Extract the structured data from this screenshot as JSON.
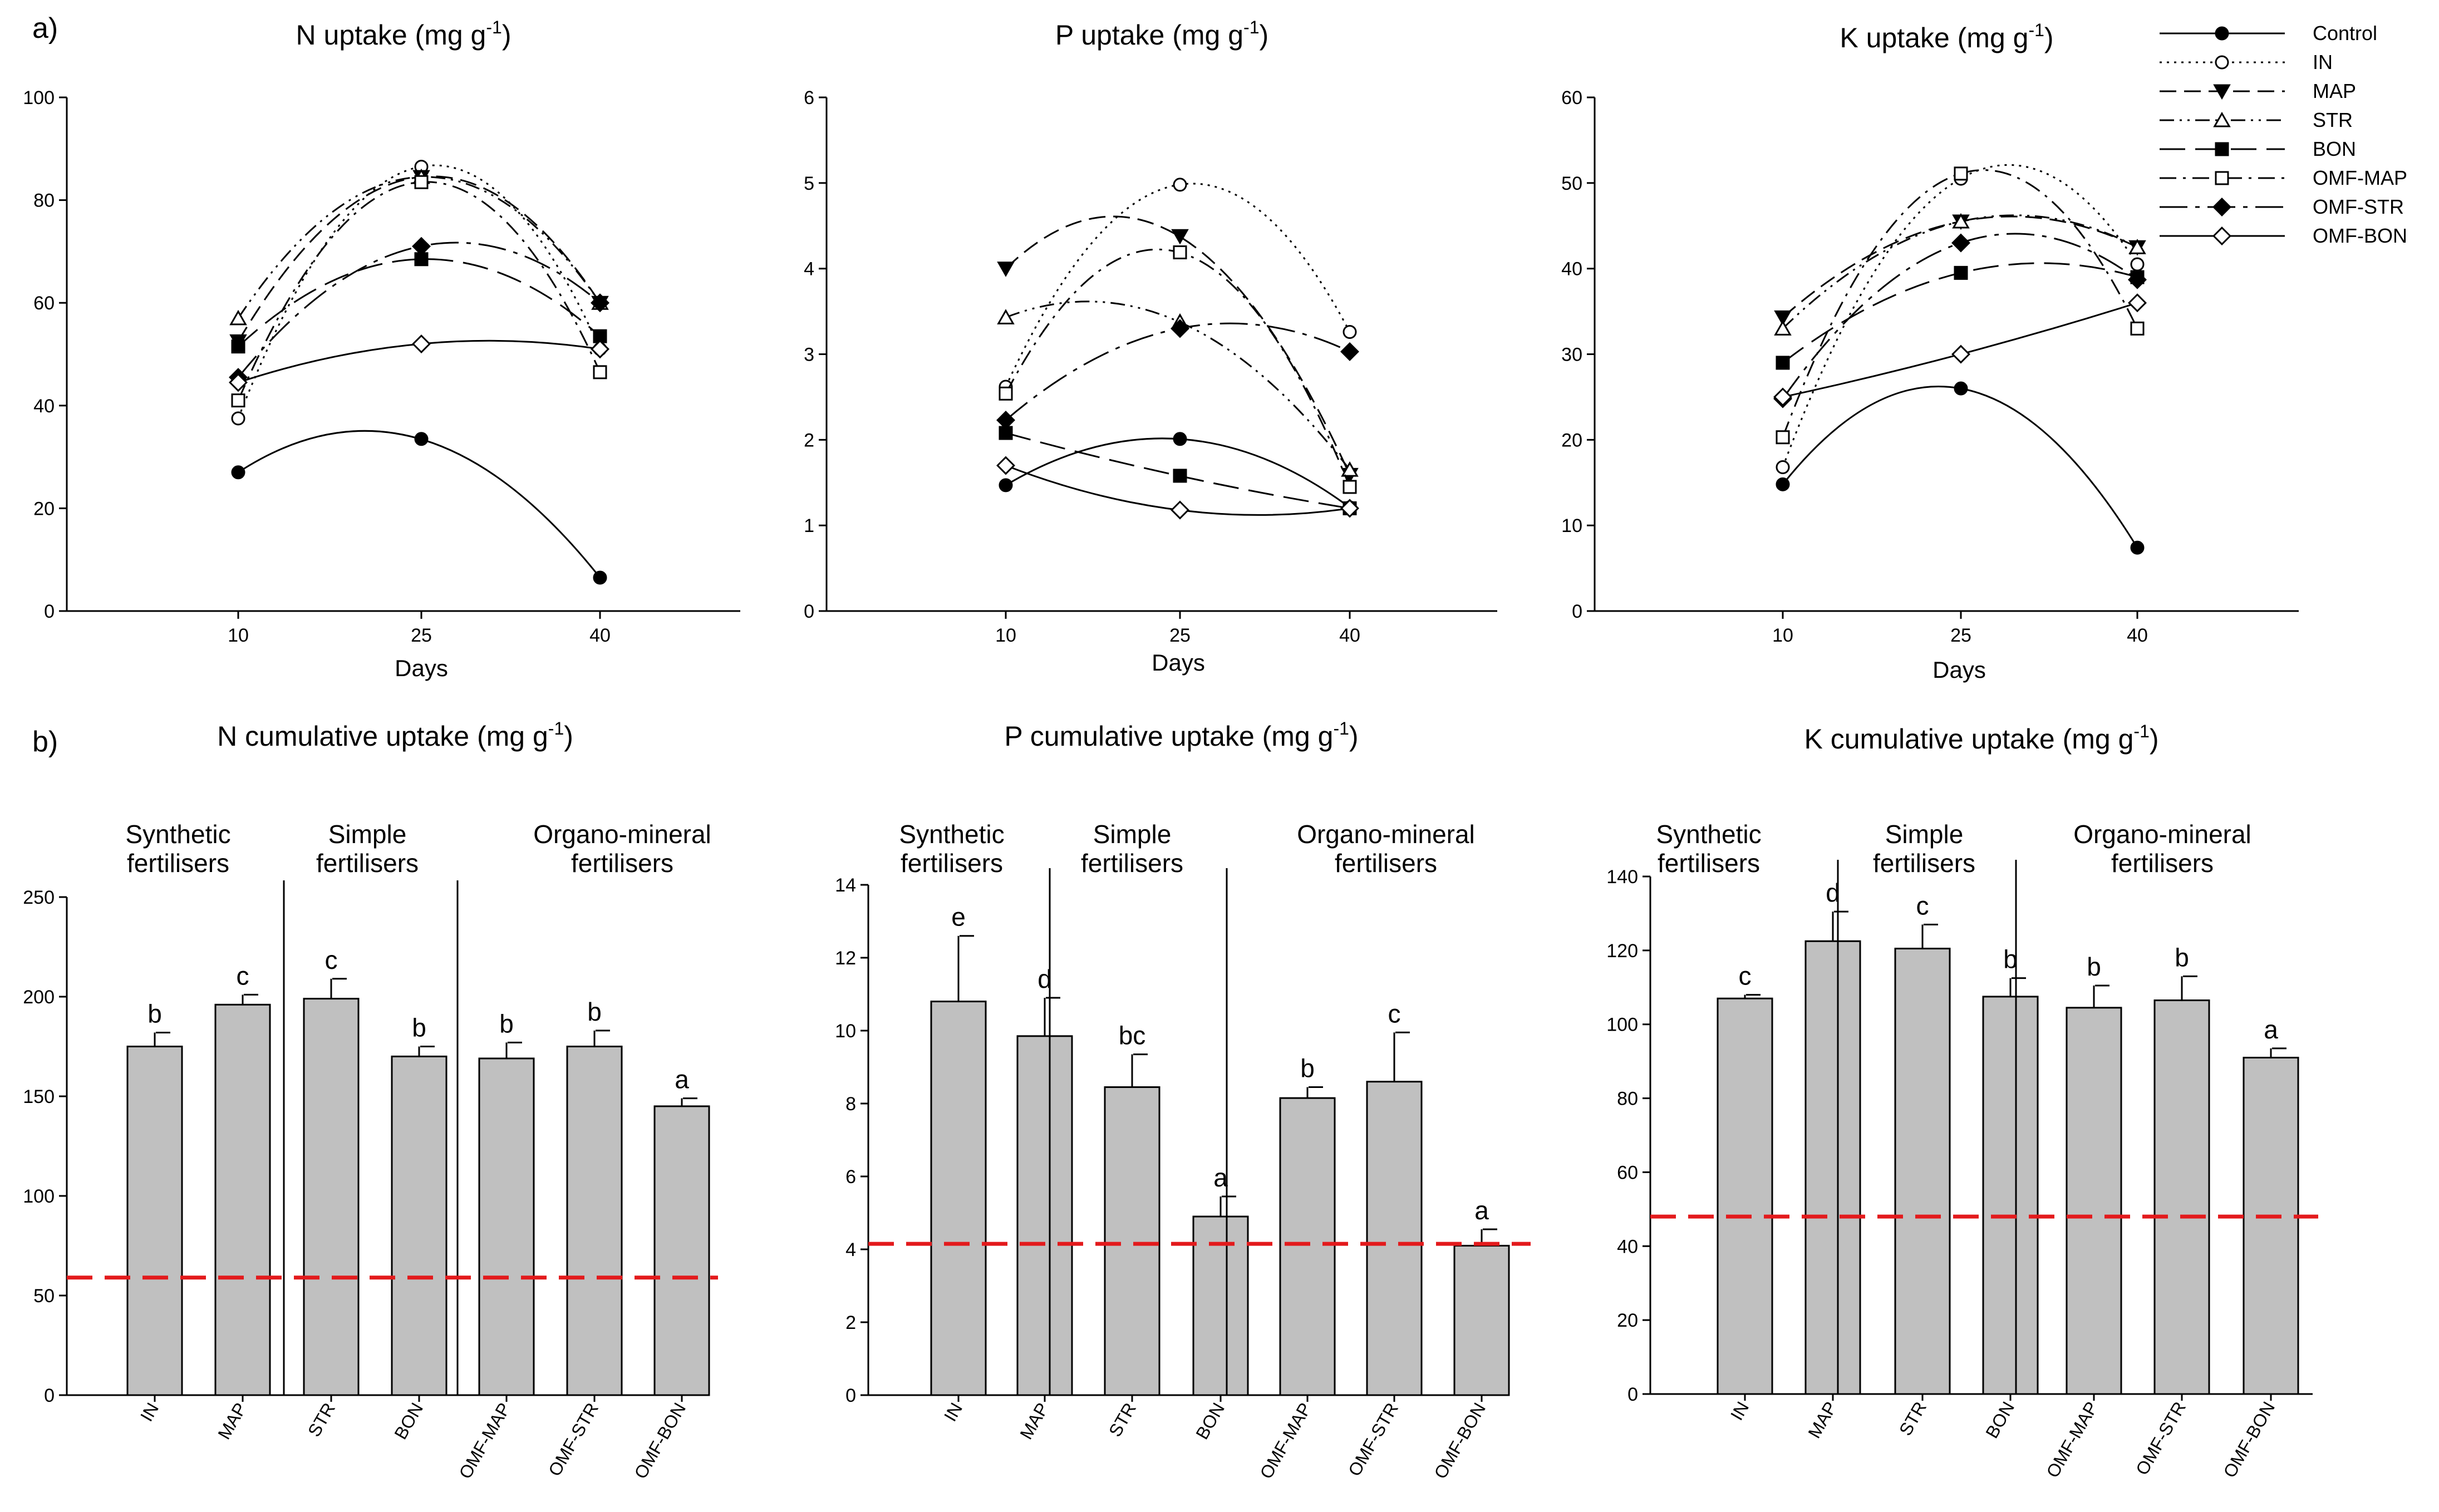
{
  "figure": {
    "panel_a_label": "a)",
    "panel_b_label": "b)",
    "legend": [
      {
        "name": "Control",
        "style": "solid",
        "marker": "circle-filled"
      },
      {
        "name": "IN",
        "style": "dotted",
        "marker": "circle-open"
      },
      {
        "name": "MAP",
        "style": "dash",
        "marker": "triangle-down-filled"
      },
      {
        "name": "STR",
        "style": "dashdotdot",
        "marker": "triangle-up-open"
      },
      {
        "name": "BON",
        "style": "longdash",
        "marker": "square-filled"
      },
      {
        "name": "OMF-MAP",
        "style": "dashdot",
        "marker": "square-open"
      },
      {
        "name": "OMF-STR",
        "style": "longdashdot",
        "marker": "diamond-filled"
      },
      {
        "name": "OMF-BON",
        "style": "solid",
        "marker": "diamond-open"
      }
    ],
    "groups": [
      {
        "line1": "Synthetic",
        "line2": "fertilisers"
      },
      {
        "line1": "Simple",
        "line2": "fertilisers"
      },
      {
        "line1": "Organo-mineral",
        "line2": "fertilisers"
      }
    ],
    "colors": {
      "bar": "#c0c0c0",
      "reference_line": "#e31a1c",
      "ink": "#000000"
    }
  },
  "chart_data": [
    {
      "type": "line",
      "title_main": "N uptake (mg g",
      "title_sup": "-1",
      "title_end": ")",
      "xlabel": "Days",
      "ylabel": "",
      "x": [
        10,
        25,
        40
      ],
      "x_ticks": [
        "10",
        "25",
        "40"
      ],
      "ylim": [
        0,
        100
      ],
      "y_ticks": [
        "0",
        "20",
        "40",
        "60",
        "80",
        "100"
      ],
      "series": [
        {
          "name": "Control",
          "values": [
            27,
            33.5,
            6.5
          ]
        },
        {
          "name": "IN",
          "values": [
            37.5,
            86.5,
            51
          ]
        },
        {
          "name": "MAP",
          "values": [
            52.5,
            84.5,
            60
          ]
        },
        {
          "name": "STR",
          "values": [
            57,
            84.5,
            60
          ]
        },
        {
          "name": "BON",
          "values": [
            51.5,
            68.5,
            53.5
          ]
        },
        {
          "name": "OMF-MAP",
          "values": [
            41,
            83.5,
            46.5
          ]
        },
        {
          "name": "OMF-STR",
          "values": [
            45.5,
            71,
            60
          ]
        },
        {
          "name": "OMF-BON",
          "values": [
            44.5,
            52,
            51
          ]
        }
      ]
    },
    {
      "type": "line",
      "title_main": "P  uptake (mg g",
      "title_sup": "-1",
      "title_end": ")",
      "xlabel": "Days",
      "ylabel": "",
      "x": [
        10,
        25,
        40
      ],
      "x_ticks": [
        "10",
        "25",
        "40"
      ],
      "ylim": [
        0,
        6
      ],
      "y_ticks": [
        "0",
        "1",
        "2",
        "3",
        "4",
        "5",
        "6"
      ],
      "series": [
        {
          "name": "Control",
          "values": [
            1.47,
            2.01,
            1.21
          ]
        },
        {
          "name": "IN",
          "values": [
            2.62,
            4.98,
            3.26
          ]
        },
        {
          "name": "MAP",
          "values": [
            4.0,
            4.38,
            1.59
          ]
        },
        {
          "name": "STR",
          "values": [
            3.43,
            3.38,
            1.65
          ]
        },
        {
          "name": "BON",
          "values": [
            2.08,
            1.58,
            1.2
          ]
        },
        {
          "name": "OMF-MAP",
          "values": [
            2.54,
            4.19,
            1.45
          ]
        },
        {
          "name": "OMF-STR",
          "values": [
            2.23,
            3.3,
            3.03
          ]
        },
        {
          "name": "OMF-BON",
          "values": [
            1.7,
            1.18,
            1.2
          ]
        }
      ]
    },
    {
      "type": "line",
      "title_main": "K uptake (mg g",
      "title_sup": "-1",
      "title_end": ")",
      "xlabel": "Days",
      "ylabel": "",
      "x": [
        10,
        25,
        40
      ],
      "x_ticks": [
        "10",
        "25",
        "40"
      ],
      "ylim": [
        0,
        60
      ],
      "y_ticks": [
        "0",
        "10",
        "20",
        "30",
        "40",
        "50",
        "60"
      ],
      "series": [
        {
          "name": "Control",
          "values": [
            14.8,
            26,
            7.4
          ]
        },
        {
          "name": "IN",
          "values": [
            16.8,
            50.5,
            40.5
          ]
        },
        {
          "name": "MAP",
          "values": [
            34.3,
            45.5,
            42.5
          ]
        },
        {
          "name": "STR",
          "values": [
            33,
            45.5,
            42.5
          ]
        },
        {
          "name": "BON",
          "values": [
            29,
            39.5,
            39
          ]
        },
        {
          "name": "OMF-MAP",
          "values": [
            20.3,
            51.1,
            33
          ]
        },
        {
          "name": "OMF-STR",
          "values": [
            24.8,
            43,
            38.7
          ]
        },
        {
          "name": "OMF-BON",
          "values": [
            25,
            30,
            36
          ]
        }
      ]
    },
    {
      "type": "bar",
      "title_main": "N cumulative uptake (mg g",
      "title_sup": "-1",
      "title_end": ")",
      "xlabel": "",
      "ylabel": "",
      "categories": [
        "IN",
        "MAP",
        "STR",
        "BON",
        "OMF-MAP",
        "OMF-STR",
        "OMF-BON"
      ],
      "values": [
        175,
        196,
        199,
        170,
        169,
        175,
        145
      ],
      "errors": [
        7,
        5,
        10,
        5,
        8,
        8,
        4
      ],
      "letters": [
        "b",
        "c",
        "c",
        "b",
        "b",
        "b",
        "a"
      ],
      "reference_line": 59,
      "ylim": [
        0,
        250
      ],
      "y_ticks": [
        "0",
        "50",
        "100",
        "150",
        "200",
        "250"
      ],
      "group_dividers_after": [
        1,
        3
      ]
    },
    {
      "type": "bar",
      "title_main": "P cumulative uptake (mg g",
      "title_sup": "-1",
      "title_end": ")",
      "xlabel": "",
      "ylabel": "",
      "categories": [
        "IN",
        "MAP",
        "STR",
        "BON",
        "OMF-MAP",
        "OMF-STR",
        "OMF-BON"
      ],
      "values": [
        10.8,
        9.85,
        8.45,
        4.9,
        8.15,
        8.6,
        4.1
      ],
      "errors": [
        1.8,
        1.05,
        0.9,
        0.55,
        0.3,
        1.35,
        0.45
      ],
      "letters": [
        "e",
        "d",
        "bc",
        "a",
        "b",
        "c",
        "a"
      ],
      "reference_line": 4.15,
      "ylim": [
        0,
        14
      ],
      "y_ticks": [
        "0",
        "2",
        "4",
        "6",
        "8",
        "10",
        "12",
        "14"
      ],
      "group_dividers_after": [
        1,
        3
      ]
    },
    {
      "type": "bar",
      "title_main": "K cumulative uptake (mg g",
      "title_sup": "-1",
      "title_end": ")",
      "xlabel": "",
      "ylabel": "",
      "categories": [
        "IN",
        "MAP",
        "STR",
        "BON",
        "OMF-MAP",
        "OMF-STR",
        "OMF-BON"
      ],
      "values": [
        107,
        122.5,
        120.5,
        107.5,
        104.5,
        106.5,
        91
      ],
      "errors": [
        1,
        8,
        6.5,
        5,
        6,
        6.5,
        2.5
      ],
      "letters": [
        "c",
        "d",
        "c",
        "b",
        "b",
        "b",
        "a"
      ],
      "reference_line": 48,
      "ylim": [
        0,
        140
      ],
      "y_ticks": [
        "0",
        "20",
        "40",
        "60",
        "80",
        "100",
        "120",
        "140"
      ],
      "group_dividers_after": [
        1,
        3
      ]
    }
  ]
}
